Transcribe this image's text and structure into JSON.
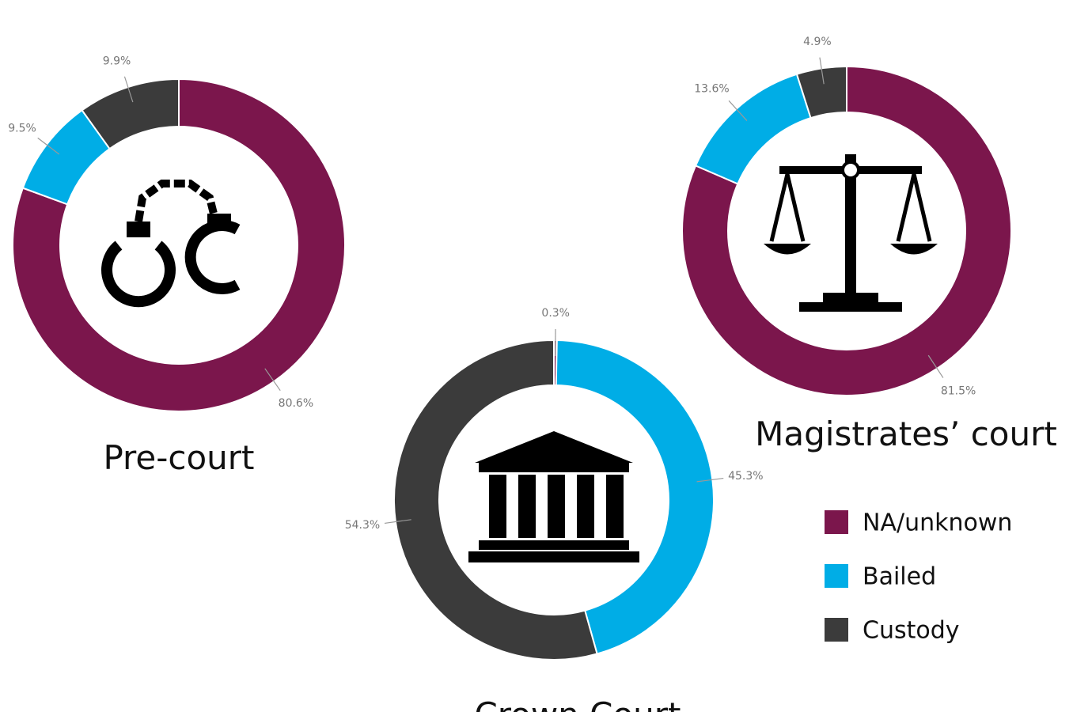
{
  "chart_data": [
    {
      "type": "pie",
      "title": "Pre-court",
      "values": [
        80.6,
        9.5,
        9.9
      ],
      "value_labels": [
        "80.6%",
        "9.5%",
        "9.9%"
      ]
    },
    {
      "type": "pie",
      "title": "Magistrates’ court",
      "values": [
        81.5,
        13.6,
        4.9
      ],
      "value_labels": [
        "81.5%",
        "13.6%",
        "4.9%"
      ]
    },
    {
      "type": "pie",
      "title": "Crown Court",
      "values": [
        0.3,
        45.3,
        54.3
      ],
      "value_labels": [
        "0.3%",
        "45.3%",
        "54.3%"
      ]
    }
  ],
  "legend": {
    "categories": [
      "NA/unknown",
      "Bailed",
      "Custody"
    ],
    "colors": [
      "#7b164c",
      "#00ade6",
      "#3b3b3b"
    ]
  }
}
